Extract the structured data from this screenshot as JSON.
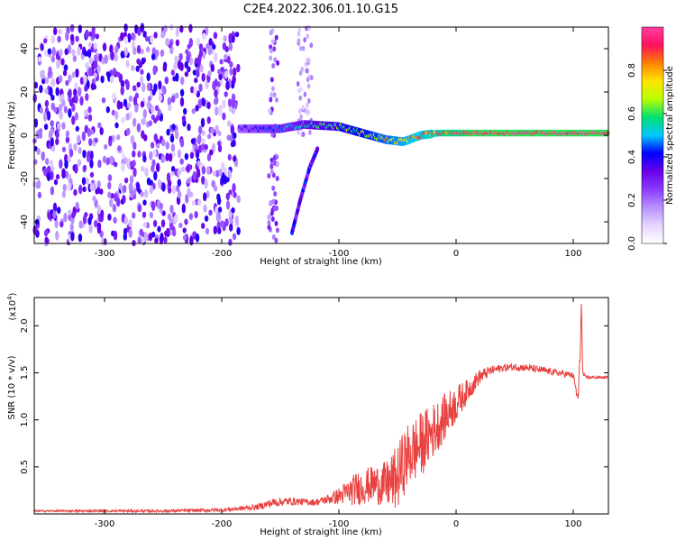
{
  "figure_title": "C2E4.2022.306.01.10.G15",
  "colors": {
    "snr_line": "#e8413f",
    "colormap": [
      "#ffffff",
      "#e6d6ff",
      "#b890ff",
      "#8a3cff",
      "#6a00e8",
      "#0000ff",
      "#00c8ff",
      "#00e070",
      "#b8ff00",
      "#ffe600",
      "#ff8000",
      "#ff1060",
      "#ff3fa0"
    ]
  },
  "chart_data": [
    {
      "type": "heatmap",
      "title": "",
      "xlabel": "Height of straight line (km)",
      "ylabel": "Frequency (Hz)",
      "xlim": [
        -360,
        130
      ],
      "ylim": [
        -50,
        50
      ],
      "xticks": [
        -300,
        -200,
        -100,
        0,
        100
      ],
      "yticks": [
        -40,
        -20,
        0,
        20,
        40
      ],
      "colorbar": {
        "label": "Normalized spectral amplitude",
        "range": [
          0.0,
          1.0
        ],
        "ticks": [
          0.0,
          0.2,
          0.4,
          0.6,
          0.8
        ]
      },
      "features": [
        {
          "desc": "noise",
          "x_range": [
            -360,
            -185
          ],
          "freq_range": [
            -50,
            50
          ],
          "amplitude": 0.2
        },
        {
          "desc": "signal-trace",
          "points": [
            [
              -185,
              3
            ],
            [
              -150,
              3
            ],
            [
              -130,
              5
            ],
            [
              -100,
              4
            ],
            [
              -80,
              1
            ],
            [
              -60,
              -2
            ],
            [
              -45,
              -3
            ],
            [
              -30,
              0
            ],
            [
              -15,
              1
            ],
            [
              0,
              1
            ],
            [
              130,
              1
            ]
          ],
          "amplitude_start": 0.35,
          "amplitude_end": 1.0
        },
        {
          "desc": "descending-streak",
          "points": [
            [
              -140,
              -45
            ],
            [
              -133,
              -30
            ],
            [
              -125,
              -15
            ],
            [
              -118,
              -6
            ]
          ],
          "amplitude": 0.35
        }
      ]
    },
    {
      "type": "line",
      "title": "",
      "xlabel": "Height of straight line (km)",
      "ylabel": "SNR (10 * v/v)",
      "y_multiplier": "(x10",
      "y_multiplier_exp": "4",
      "y_multiplier_close": ")",
      "xlim": [
        -360,
        130
      ],
      "ylim": [
        0,
        23000
      ],
      "xticks": [
        -300,
        -200,
        -100,
        0,
        100
      ],
      "yticks": [
        5000,
        10000,
        15000,
        20000
      ],
      "ytick_labels": [
        "0.5",
        "1.0",
        "1.5",
        "2.0"
      ],
      "series": [
        {
          "x": [
            -360,
            -250,
            -200,
            -170,
            -155,
            -140,
            -120,
            -110,
            -100,
            -85,
            -70,
            -60,
            -50,
            -45,
            -40,
            -30,
            -20,
            -10,
            0,
            10,
            20,
            30,
            40,
            50,
            60,
            70,
            80,
            90,
            100,
            104,
            106,
            107,
            108,
            110,
            115,
            130
          ],
          "y": [
            300,
            300,
            400,
            700,
            1200,
            1300,
            1200,
            1500,
            1800,
            2500,
            3000,
            2800,
            3500,
            5000,
            6000,
            7000,
            8500,
            10000,
            11500,
            13000,
            14500,
            15200,
            15500,
            15600,
            15500,
            15300,
            15100,
            14900,
            14700,
            12000,
            17000,
            23000,
            15000,
            14500,
            14500,
            14500
          ],
          "noise": [
            100,
            150,
            200,
            300,
            500,
            400,
            350,
            500,
            900,
            1800,
            2000,
            2500,
            3500,
            3500,
            3500,
            3500,
            3000,
            2500,
            2000,
            1200,
            800,
            500,
            400,
            400,
            400,
            400,
            350,
            350,
            350,
            600,
            800,
            0,
            300,
            200,
            150,
            150
          ]
        }
      ]
    }
  ]
}
